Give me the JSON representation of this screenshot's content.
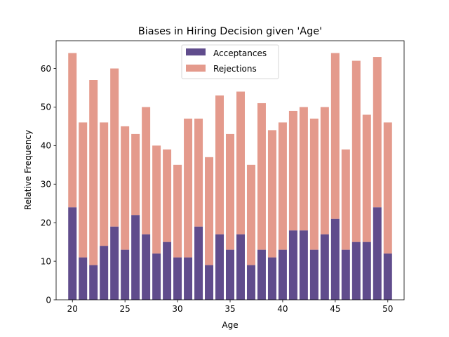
{
  "colors": {
    "acceptances": "#604c8c",
    "rejections": "#e49a8c",
    "axis": "#000000",
    "background": "#ffffff"
  },
  "chart_data": {
    "type": "bar",
    "stacked": true,
    "title": "Biases in Hiring Decision given 'Age'",
    "xlabel": "Age",
    "ylabel": "Relative Frequency",
    "x": [
      20,
      21,
      22,
      23,
      24,
      25,
      26,
      27,
      28,
      29,
      30,
      31,
      32,
      33,
      34,
      35,
      36,
      37,
      38,
      39,
      40,
      41,
      42,
      43,
      44,
      45,
      46,
      47,
      48,
      49,
      50
    ],
    "series": [
      {
        "name": "Acceptances",
        "values": [
          24,
          11,
          9,
          14,
          19,
          13,
          22,
          17,
          12,
          15,
          11,
          11,
          19,
          9,
          17,
          13,
          17,
          9,
          13,
          11,
          13,
          18,
          18,
          13,
          17,
          21,
          13,
          15,
          15,
          24,
          12
        ]
      },
      {
        "name": "Rejections",
        "values": [
          40,
          35,
          48,
          32,
          41,
          32,
          21,
          33,
          28,
          24,
          24,
          36,
          28,
          28,
          36,
          30,
          37,
          26,
          38,
          33,
          33,
          31,
          32,
          34,
          33,
          43,
          26,
          47,
          33,
          39,
          34
        ]
      }
    ],
    "totals": [
      64,
      46,
      57,
      46,
      60,
      45,
      43,
      50,
      40,
      39,
      35,
      47,
      47,
      37,
      53,
      43,
      54,
      35,
      51,
      44,
      46,
      49,
      50,
      47,
      50,
      64,
      39,
      62,
      48,
      63,
      46
    ],
    "xlim": [
      18.45,
      51.55
    ],
    "ylim": [
      0,
      67.2
    ],
    "xticks": [
      20,
      25,
      30,
      35,
      40,
      45,
      50
    ],
    "yticks": [
      0,
      10,
      20,
      30,
      40,
      50,
      60
    ],
    "grid": false,
    "legend_position": "upper center"
  }
}
